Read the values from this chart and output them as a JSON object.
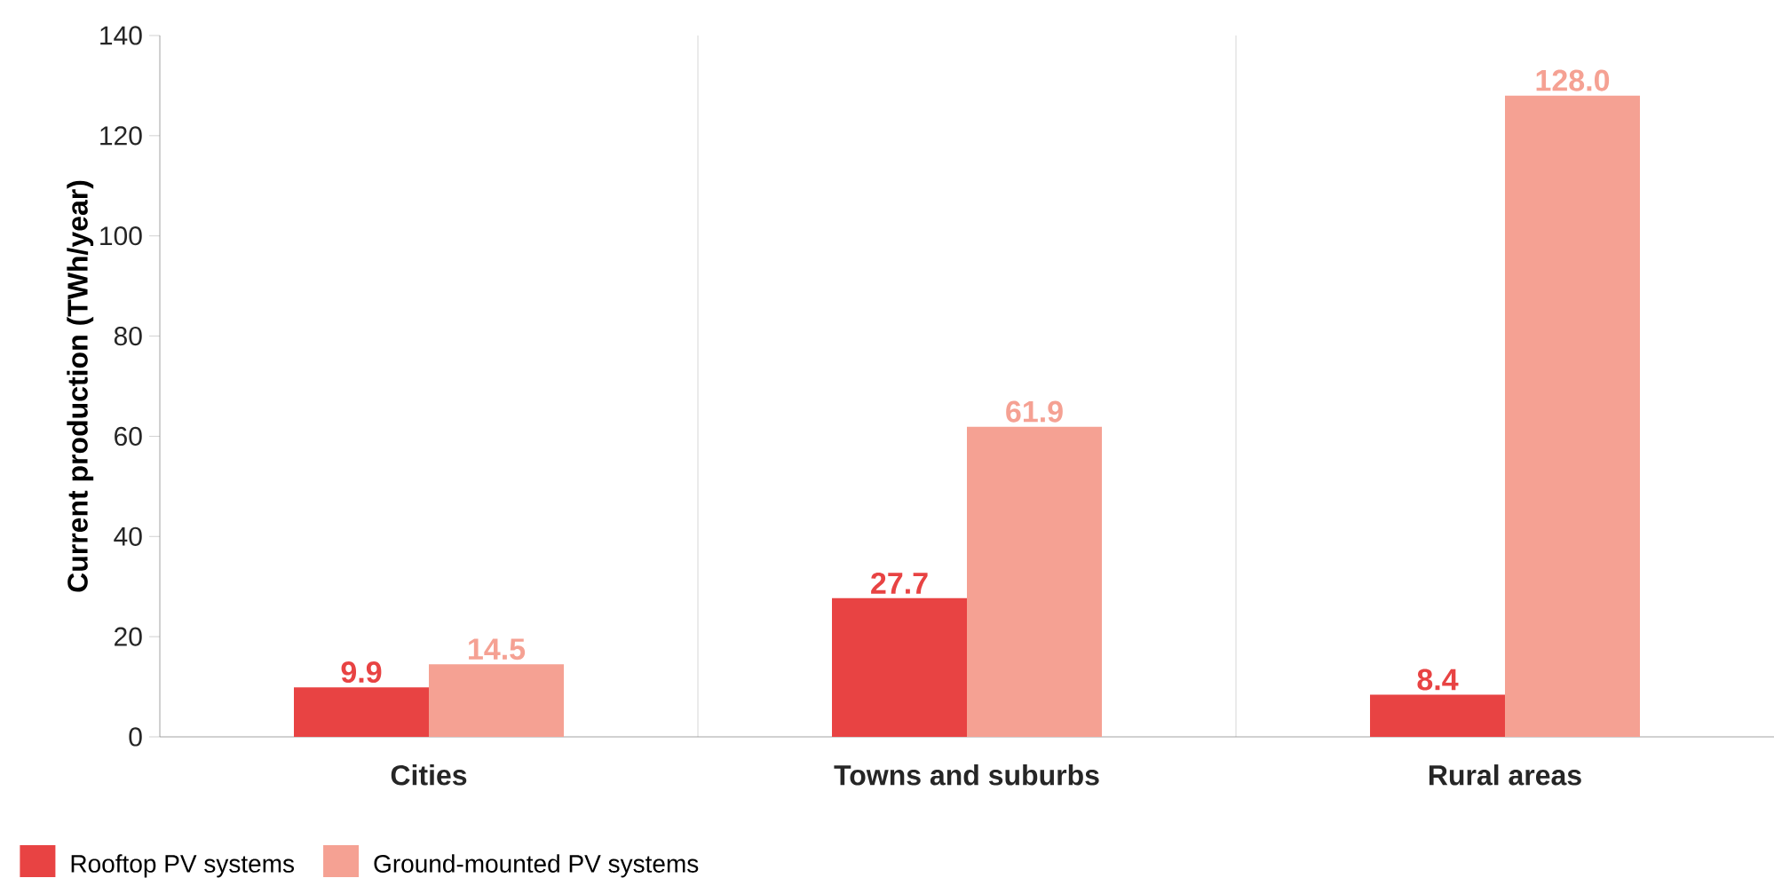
{
  "chart_data": {
    "type": "bar",
    "ylabel": "Current production (TWh/year)",
    "categories": [
      "Cities",
      "Towns and suburbs",
      "Rural areas"
    ],
    "series": [
      {
        "name": "Rooftop PV systems",
        "color": "#e84343",
        "values": [
          9.9,
          27.7,
          8.4
        ],
        "value_labels": [
          "9.9",
          "27.7",
          "8.4"
        ]
      },
      {
        "name": "Ground-mounted PV systems",
        "color": "#f5a193",
        "values": [
          14.5,
          61.9,
          128.0
        ],
        "value_labels": [
          "14.5",
          "61.9",
          "128.0"
        ]
      }
    ],
    "ylim": [
      0,
      140
    ],
    "yticks": [
      0,
      20,
      40,
      60,
      80,
      100,
      120,
      140
    ],
    "grid": "x",
    "legend": "bottom left"
  }
}
